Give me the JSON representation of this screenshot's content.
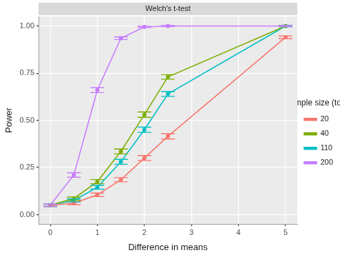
{
  "chart_data": {
    "type": "line",
    "title": "Welch's t-test",
    "x_label": "Difference in means",
    "y_label": "Power",
    "legend_title": "Sample size (total)",
    "legend": "right",
    "grid": true,
    "x": [
      0,
      0.5,
      1,
      1.5,
      2,
      2.5,
      5
    ],
    "xlim": [
      -0.25,
      5.25
    ],
    "xticks": [
      0,
      1,
      2,
      3,
      4,
      5
    ],
    "ylim": [
      -0.05,
      1.05
    ],
    "yticks": [
      {
        "value": 0,
        "label": "0.00"
      },
      {
        "value": 0.25,
        "label": "0.25"
      },
      {
        "value": 0.5,
        "label": "0.50"
      },
      {
        "value": 0.75,
        "label": "0.75"
      },
      {
        "value": 1,
        "label": "1.00"
      }
    ],
    "series": [
      {
        "name": "20",
        "color": "#F8766D",
        "values": [
          0.05,
          0.06,
          0.105,
          0.185,
          0.3,
          0.415,
          0.94
        ],
        "errors": [
          0.006,
          0.007,
          0.009,
          0.011,
          0.013,
          0.014,
          0.007
        ]
      },
      {
        "name": "40",
        "color": "#7CAE00",
        "values": [
          0.05,
          0.085,
          0.175,
          0.335,
          0.53,
          0.73,
          1.0
        ],
        "errors": [
          0.006,
          0.008,
          0.011,
          0.013,
          0.014,
          0.012,
          0.003
        ]
      },
      {
        "name": "110",
        "color": "#00BFC4",
        "values": [
          0.05,
          0.075,
          0.145,
          0.28,
          0.45,
          0.64,
          1.0
        ],
        "errors": [
          0.006,
          0.008,
          0.01,
          0.013,
          0.014,
          0.013,
          0.003
        ]
      },
      {
        "name": "200",
        "color": "#C77CFF",
        "values": [
          0.05,
          0.21,
          0.66,
          0.935,
          0.995,
          1.0,
          1.0
        ],
        "errors": [
          0.006,
          0.012,
          0.013,
          0.007,
          0.003,
          0.003,
          0.003
        ]
      }
    ]
  }
}
